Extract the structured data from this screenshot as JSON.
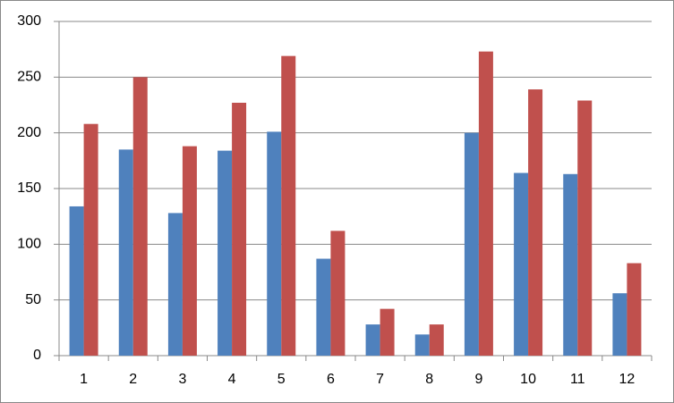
{
  "chart_data": {
    "type": "bar",
    "categories": [
      "1",
      "2",
      "3",
      "4",
      "5",
      "6",
      "7",
      "8",
      "9",
      "10",
      "11",
      "12"
    ],
    "series": [
      {
        "color": "#4f81bd",
        "values": [
          134,
          185,
          128,
          184,
          201,
          87,
          28,
          19,
          200,
          164,
          163,
          56
        ]
      },
      {
        "color": "#c0504d",
        "values": [
          208,
          250,
          188,
          227,
          269,
          112,
          42,
          28,
          273,
          239,
          229,
          83
        ]
      }
    ],
    "ylim": [
      0,
      300
    ],
    "yticks": [
      0,
      50,
      100,
      150,
      200,
      250,
      300
    ],
    "grid": true
  }
}
